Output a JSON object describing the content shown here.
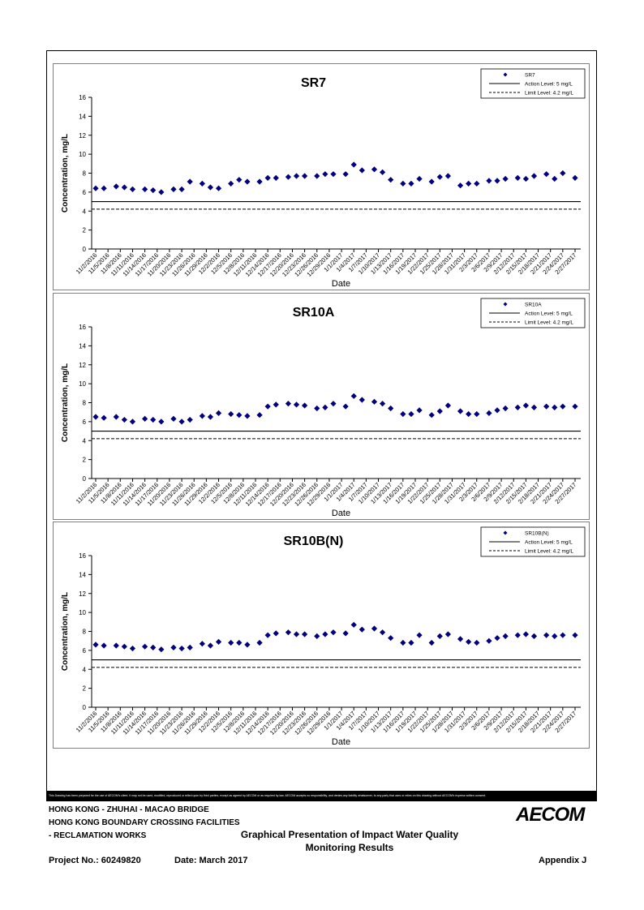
{
  "footer": {
    "disclaimer": "This Drawing has been prepared for the use of AECOM's client. It may not be used, modified, reproduced or relied upon by third parties, except as agreed by AECOM or as required by law. AECOM accepts no responsibility, and denies any liability whatsoever, to any party that uses or relies on this drawing without AECOM's express written consent.",
    "project_line1": "HONG KONG - ZHUHAI - MACAO BRIDGE",
    "project_line2": "HONG KONG BOUNDARY CROSSING FACILITIES",
    "project_line3": "- RECLAMATION WORKS",
    "caption_line1": "Graphical Presentation of Impact Water Quality",
    "caption_line2": "Monitoring Results",
    "project_no": "Project No.: 60249820",
    "date": "Date: March 2017",
    "appendix": "Appendix J",
    "logo": "AECOM"
  },
  "chart_data": [
    {
      "type": "scatter",
      "title": "SR7",
      "xlabel": "Date",
      "ylabel": "Concentration, mg/L",
      "ylim": [
        0,
        16
      ],
      "yticks": [
        0,
        2,
        4,
        6,
        8,
        10,
        12,
        14,
        16
      ],
      "xtick_labels": [
        "11/2/2016",
        "11/5/2016",
        "11/8/2016",
        "11/11/2016",
        "11/14/2016",
        "11/17/2016",
        "11/20/2016",
        "11/23/2016",
        "11/26/2016",
        "11/29/2016",
        "12/2/2016",
        "12/5/2016",
        "12/8/2016",
        "12/11/2016",
        "12/14/2016",
        "12/17/2016",
        "12/20/2016",
        "12/23/2016",
        "12/26/2016",
        "12/29/2016",
        "1/1/2017",
        "1/4/2017",
        "1/7/2017",
        "1/10/2017",
        "1/13/2017",
        "1/16/2017",
        "1/19/2017",
        "1/22/2017",
        "1/25/2017",
        "1/28/2017",
        "1/31/2017",
        "2/3/2017",
        "2/6/2017",
        "2/9/2017",
        "2/12/2017",
        "2/15/2017",
        "2/18/2017",
        "2/21/2017",
        "2/24/2017",
        "2/27/2017"
      ],
      "grid": false,
      "legend": {
        "position": "top-right",
        "entries": [
          {
            "label": "SR7",
            "kind": "marker"
          },
          {
            "label": "Action Level: 5 mg/L",
            "kind": "solid"
          },
          {
            "label": "Limit Level: 4.2 mg/L",
            "kind": "dashed"
          }
        ]
      },
      "action_level": 5,
      "limit_level": 4.2,
      "marker_color": "#000080",
      "points": [
        {
          "x": "11/2/2016",
          "y": 6.4
        },
        {
          "x": "11/4/2016",
          "y": 6.4
        },
        {
          "x": "11/7/2016",
          "y": 6.6
        },
        {
          "x": "11/9/2016",
          "y": 6.5
        },
        {
          "x": "11/11/2016",
          "y": 6.3
        },
        {
          "x": "11/14/2016",
          "y": 6.3
        },
        {
          "x": "11/16/2016",
          "y": 6.2
        },
        {
          "x": "11/18/2016",
          "y": 6.0
        },
        {
          "x": "11/21/2016",
          "y": 6.3
        },
        {
          "x": "11/23/2016",
          "y": 6.3
        },
        {
          "x": "11/25/2016",
          "y": 7.1
        },
        {
          "x": "11/28/2016",
          "y": 6.9
        },
        {
          "x": "11/30/2016",
          "y": 6.5
        },
        {
          "x": "12/2/2016",
          "y": 6.4
        },
        {
          "x": "12/5/2016",
          "y": 6.9
        },
        {
          "x": "12/7/2016",
          "y": 7.3
        },
        {
          "x": "12/9/2016",
          "y": 7.1
        },
        {
          "x": "12/12/2016",
          "y": 7.1
        },
        {
          "x": "12/14/2016",
          "y": 7.5
        },
        {
          "x": "12/16/2016",
          "y": 7.5
        },
        {
          "x": "12/19/2016",
          "y": 7.6
        },
        {
          "x": "12/21/2016",
          "y": 7.7
        },
        {
          "x": "12/23/2016",
          "y": 7.7
        },
        {
          "x": "12/26/2016",
          "y": 7.7
        },
        {
          "x": "12/28/2016",
          "y": 7.9
        },
        {
          "x": "12/30/2016",
          "y": 7.9
        },
        {
          "x": "1/2/2017",
          "y": 7.9
        },
        {
          "x": "1/4/2017",
          "y": 8.9
        },
        {
          "x": "1/6/2017",
          "y": 8.3
        },
        {
          "x": "1/9/2017",
          "y": 8.4
        },
        {
          "x": "1/11/2017",
          "y": 8.1
        },
        {
          "x": "1/13/2017",
          "y": 7.3
        },
        {
          "x": "1/16/2017",
          "y": 6.9
        },
        {
          "x": "1/18/2017",
          "y": 6.9
        },
        {
          "x": "1/20/2017",
          "y": 7.4
        },
        {
          "x": "1/23/2017",
          "y": 7.1
        },
        {
          "x": "1/25/2017",
          "y": 7.6
        },
        {
          "x": "1/27/2017",
          "y": 7.7
        },
        {
          "x": "1/30/2017",
          "y": 6.7
        },
        {
          "x": "2/1/2017",
          "y": 6.9
        },
        {
          "x": "2/3/2017",
          "y": 6.9
        },
        {
          "x": "2/6/2017",
          "y": 7.2
        },
        {
          "x": "2/8/2017",
          "y": 7.2
        },
        {
          "x": "2/10/2017",
          "y": 7.4
        },
        {
          "x": "2/13/2017",
          "y": 7.5
        },
        {
          "x": "2/15/2017",
          "y": 7.4
        },
        {
          "x": "2/17/2017",
          "y": 7.7
        },
        {
          "x": "2/20/2017",
          "y": 7.9
        },
        {
          "x": "2/22/2017",
          "y": 7.4
        },
        {
          "x": "2/24/2017",
          "y": 8.0
        },
        {
          "x": "2/27/2017",
          "y": 7.5
        }
      ]
    },
    {
      "type": "scatter",
      "title": "SR10A",
      "xlabel": "Date",
      "ylabel": "Concentration, mg/L",
      "ylim": [
        0,
        16
      ],
      "yticks": [
        0,
        2,
        4,
        6,
        8,
        10,
        12,
        14,
        16
      ],
      "xtick_labels": [
        "11/2/2016",
        "11/5/2016",
        "11/8/2016",
        "11/11/2016",
        "11/14/2016",
        "11/17/2016",
        "11/20/2016",
        "11/23/2016",
        "11/26/2016",
        "11/29/2016",
        "12/2/2016",
        "12/5/2016",
        "12/8/2016",
        "12/11/2016",
        "12/14/2016",
        "12/17/2016",
        "12/20/2016",
        "12/23/2016",
        "12/26/2016",
        "12/29/2016",
        "1/1/2017",
        "1/4/2017",
        "1/7/2017",
        "1/10/2017",
        "1/13/2017",
        "1/16/2017",
        "1/19/2017",
        "1/22/2017",
        "1/25/2017",
        "1/28/2017",
        "1/31/2017",
        "2/3/2017",
        "2/6/2017",
        "2/9/2017",
        "2/12/2017",
        "2/15/2017",
        "2/18/2017",
        "2/21/2017",
        "2/24/2017",
        "2/27/2017"
      ],
      "grid": false,
      "legend": {
        "position": "top-right",
        "entries": [
          {
            "label": "SR10A",
            "kind": "marker"
          },
          {
            "label": "Action Level: 5 mg/L",
            "kind": "solid"
          },
          {
            "label": "Limit Level: 4.2 mg/L",
            "kind": "dashed"
          }
        ]
      },
      "action_level": 5,
      "limit_level": 4.2,
      "marker_color": "#000080",
      "points": [
        {
          "x": "11/2/2016",
          "y": 6.5
        },
        {
          "x": "11/4/2016",
          "y": 6.4
        },
        {
          "x": "11/7/2016",
          "y": 6.5
        },
        {
          "x": "11/9/2016",
          "y": 6.2
        },
        {
          "x": "11/11/2016",
          "y": 6.0
        },
        {
          "x": "11/14/2016",
          "y": 6.3
        },
        {
          "x": "11/16/2016",
          "y": 6.2
        },
        {
          "x": "11/18/2016",
          "y": 6.0
        },
        {
          "x": "11/21/2016",
          "y": 6.3
        },
        {
          "x": "11/23/2016",
          "y": 6.0
        },
        {
          "x": "11/25/2016",
          "y": 6.2
        },
        {
          "x": "11/28/2016",
          "y": 6.6
        },
        {
          "x": "11/30/2016",
          "y": 6.5
        },
        {
          "x": "12/2/2016",
          "y": 6.9
        },
        {
          "x": "12/5/2016",
          "y": 6.8
        },
        {
          "x": "12/7/2016",
          "y": 6.7
        },
        {
          "x": "12/9/2016",
          "y": 6.6
        },
        {
          "x": "12/12/2016",
          "y": 6.7
        },
        {
          "x": "12/14/2016",
          "y": 7.6
        },
        {
          "x": "12/16/2016",
          "y": 7.8
        },
        {
          "x": "12/19/2016",
          "y": 7.9
        },
        {
          "x": "12/21/2016",
          "y": 7.8
        },
        {
          "x": "12/23/2016",
          "y": 7.7
        },
        {
          "x": "12/26/2016",
          "y": 7.4
        },
        {
          "x": "12/28/2016",
          "y": 7.5
        },
        {
          "x": "12/30/2016",
          "y": 7.9
        },
        {
          "x": "1/2/2017",
          "y": 7.6
        },
        {
          "x": "1/4/2017",
          "y": 8.7
        },
        {
          "x": "1/6/2017",
          "y": 8.3
        },
        {
          "x": "1/9/2017",
          "y": 8.1
        },
        {
          "x": "1/11/2017",
          "y": 7.9
        },
        {
          "x": "1/13/2017",
          "y": 7.4
        },
        {
          "x": "1/16/2017",
          "y": 6.8
        },
        {
          "x": "1/18/2017",
          "y": 6.8
        },
        {
          "x": "1/20/2017",
          "y": 7.2
        },
        {
          "x": "1/23/2017",
          "y": 6.7
        },
        {
          "x": "1/25/2017",
          "y": 7.1
        },
        {
          "x": "1/27/2017",
          "y": 7.7
        },
        {
          "x": "1/30/2017",
          "y": 7.1
        },
        {
          "x": "2/1/2017",
          "y": 6.8
        },
        {
          "x": "2/3/2017",
          "y": 6.8
        },
        {
          "x": "2/6/2017",
          "y": 6.9
        },
        {
          "x": "2/8/2017",
          "y": 7.2
        },
        {
          "x": "2/10/2017",
          "y": 7.4
        },
        {
          "x": "2/13/2017",
          "y": 7.5
        },
        {
          "x": "2/15/2017",
          "y": 7.7
        },
        {
          "x": "2/17/2017",
          "y": 7.5
        },
        {
          "x": "2/20/2017",
          "y": 7.6
        },
        {
          "x": "2/22/2017",
          "y": 7.5
        },
        {
          "x": "2/24/2017",
          "y": 7.6
        },
        {
          "x": "2/27/2017",
          "y": 7.6
        }
      ]
    },
    {
      "type": "scatter",
      "title": "SR10B(N)",
      "xlabel": "Date",
      "ylabel": "Concentration, mg/L",
      "ylim": [
        0,
        16
      ],
      "yticks": [
        0,
        2,
        4,
        6,
        8,
        10,
        12,
        14,
        16
      ],
      "xtick_labels": [
        "11/2/2016",
        "11/5/2016",
        "11/8/2016",
        "11/11/2016",
        "11/14/2016",
        "11/17/2016",
        "11/20/2016",
        "11/23/2016",
        "11/26/2016",
        "11/29/2016",
        "12/2/2016",
        "12/5/2016",
        "12/8/2016",
        "12/11/2016",
        "12/14/2016",
        "12/17/2016",
        "12/20/2016",
        "12/23/2016",
        "12/26/2016",
        "12/29/2016",
        "1/1/2017",
        "1/4/2017",
        "1/7/2017",
        "1/10/2017",
        "1/13/2017",
        "1/16/2017",
        "1/19/2017",
        "1/22/2017",
        "1/25/2017",
        "1/28/2017",
        "1/31/2017",
        "2/3/2017",
        "2/6/2017",
        "2/9/2017",
        "2/12/2017",
        "2/15/2017",
        "2/18/2017",
        "2/21/2017",
        "2/24/2017",
        "2/27/2017"
      ],
      "grid": false,
      "legend": {
        "position": "top-right",
        "entries": [
          {
            "label": "SR10B(N)",
            "kind": "marker"
          },
          {
            "label": "Action Level: 5 mg/L",
            "kind": "solid"
          },
          {
            "label": "Limit Level: 4.2 mg/L",
            "kind": "dashed"
          }
        ]
      },
      "action_level": 5,
      "limit_level": 4.2,
      "marker_color": "#000080",
      "points": [
        {
          "x": "11/2/2016",
          "y": 6.6
        },
        {
          "x": "11/4/2016",
          "y": 6.5
        },
        {
          "x": "11/7/2016",
          "y": 6.5
        },
        {
          "x": "11/9/2016",
          "y": 6.4
        },
        {
          "x": "11/11/2016",
          "y": 6.2
        },
        {
          "x": "11/14/2016",
          "y": 6.4
        },
        {
          "x": "11/16/2016",
          "y": 6.3
        },
        {
          "x": "11/18/2016",
          "y": 6.1
        },
        {
          "x": "11/21/2016",
          "y": 6.3
        },
        {
          "x": "11/23/2016",
          "y": 6.2
        },
        {
          "x": "11/25/2016",
          "y": 6.3
        },
        {
          "x": "11/28/2016",
          "y": 6.7
        },
        {
          "x": "11/30/2016",
          "y": 6.5
        },
        {
          "x": "12/2/2016",
          "y": 6.9
        },
        {
          "x": "12/5/2016",
          "y": 6.8
        },
        {
          "x": "12/7/2016",
          "y": 6.8
        },
        {
          "x": "12/9/2016",
          "y": 6.6
        },
        {
          "x": "12/12/2016",
          "y": 6.8
        },
        {
          "x": "12/14/2016",
          "y": 7.6
        },
        {
          "x": "12/16/2016",
          "y": 7.8
        },
        {
          "x": "12/19/2016",
          "y": 7.9
        },
        {
          "x": "12/21/2016",
          "y": 7.7
        },
        {
          "x": "12/23/2016",
          "y": 7.7
        },
        {
          "x": "12/26/2016",
          "y": 7.5
        },
        {
          "x": "12/28/2016",
          "y": 7.7
        },
        {
          "x": "12/30/2016",
          "y": 7.9
        },
        {
          "x": "1/2/2017",
          "y": 7.8
        },
        {
          "x": "1/4/2017",
          "y": 8.7
        },
        {
          "x": "1/6/2017",
          "y": 8.2
        },
        {
          "x": "1/9/2017",
          "y": 8.3
        },
        {
          "x": "1/11/2017",
          "y": 7.9
        },
        {
          "x": "1/13/2017",
          "y": 7.3
        },
        {
          "x": "1/16/2017",
          "y": 6.8
        },
        {
          "x": "1/18/2017",
          "y": 6.8
        },
        {
          "x": "1/20/2017",
          "y": 7.6
        },
        {
          "x": "1/23/2017",
          "y": 6.8
        },
        {
          "x": "1/25/2017",
          "y": 7.5
        },
        {
          "x": "1/27/2017",
          "y": 7.7
        },
        {
          "x": "1/30/2017",
          "y": 7.2
        },
        {
          "x": "2/1/2017",
          "y": 6.9
        },
        {
          "x": "2/3/2017",
          "y": 6.8
        },
        {
          "x": "2/6/2017",
          "y": 7.0
        },
        {
          "x": "2/8/2017",
          "y": 7.3
        },
        {
          "x": "2/10/2017",
          "y": 7.5
        },
        {
          "x": "2/13/2017",
          "y": 7.6
        },
        {
          "x": "2/15/2017",
          "y": 7.7
        },
        {
          "x": "2/17/2017",
          "y": 7.5
        },
        {
          "x": "2/20/2017",
          "y": 7.6
        },
        {
          "x": "2/22/2017",
          "y": 7.5
        },
        {
          "x": "2/24/2017",
          "y": 7.6
        },
        {
          "x": "2/27/2017",
          "y": 7.6
        }
      ]
    }
  ]
}
